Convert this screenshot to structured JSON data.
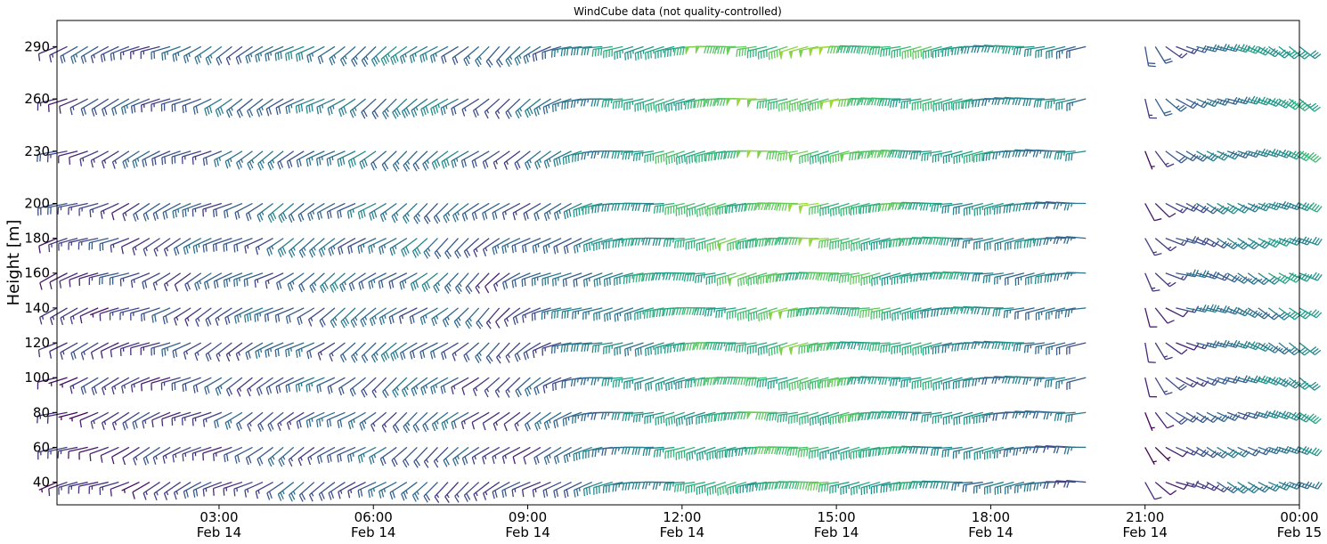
{
  "chart_data": {
    "type": "barbs",
    "title": "WindCube data (not quality-controlled)",
    "ylabel": "Height [m]",
    "xlabel": "",
    "ylim": [
      27,
      305
    ],
    "xlim_hours": [
      -0.15,
      24
    ],
    "yticks": [
      40,
      60,
      80,
      100,
      120,
      140,
      160,
      180,
      200,
      230,
      260,
      290
    ],
    "xticks": [
      {
        "hour": 3,
        "time": "03:00",
        "date": "Feb 14"
      },
      {
        "hour": 6,
        "time": "06:00",
        "date": "Feb 14"
      },
      {
        "hour": 9,
        "time": "09:00",
        "date": "Feb 14"
      },
      {
        "hour": 12,
        "time": "12:00",
        "date": "Feb 14"
      },
      {
        "hour": 15,
        "time": "15:00",
        "date": "Feb 14"
      },
      {
        "hour": 18,
        "time": "18:00",
        "date": "Feb 14"
      },
      {
        "hour": 21,
        "time": "21:00",
        "date": "Feb 14"
      },
      {
        "hour": 24,
        "time": "00:00",
        "date": "Feb 15"
      }
    ],
    "heights_m": [
      40,
      60,
      80,
      100,
      120,
      140,
      160,
      180,
      200,
      230,
      260,
      290
    ],
    "grid": false,
    "colormap": "viridis",
    "colormap_stops": [
      "#440154",
      "#482878",
      "#3e4989",
      "#31688e",
      "#26828e",
      "#1f9e89",
      "#35b779",
      "#6ece58",
      "#b5de2b",
      "#fde725"
    ],
    "wind_speed_range_kt": [
      5,
      60
    ],
    "data_gaps_hours": [
      {
        "heights": "all",
        "from": 19.85,
        "to": 20.6
      },
      {
        "heights": [
          40,
          60,
          80,
          100,
          120,
          140
        ],
        "from": 20.6,
        "to": 20.85
      },
      {
        "heights": [
          160,
          180,
          200,
          230,
          260,
          290
        ],
        "from": 20.0,
        "to": 21.0
      }
    ],
    "segments_by_height": [
      {
        "from": -0.15,
        "to": 19.85,
        "speed_kt": [
          [
            -0.15,
            12
          ],
          [
            4.5,
            22
          ],
          [
            7.5,
            24
          ],
          [
            8.5,
            15
          ],
          [
            10.5,
            28
          ],
          [
            12.5,
            40
          ],
          [
            14.5,
            45
          ],
          [
            16.5,
            38
          ],
          [
            18.5,
            28
          ],
          [
            19.85,
            24
          ]
        ],
        "dir_deg": [
          [
            -0.15,
            250
          ],
          [
            8.5,
            230
          ],
          [
            10.5,
            260
          ],
          [
            19.85,
            265
          ]
        ]
      },
      {
        "from": 21.0,
        "to": 24.0,
        "speed_kt": [
          [
            21.0,
            10
          ],
          [
            22.0,
            22
          ],
          [
            24.0,
            34
          ]
        ],
        "dir_deg": [
          [
            21.0,
            160
          ],
          [
            21.5,
            110
          ],
          [
            24.0,
            120
          ]
        ]
      }
    ]
  }
}
